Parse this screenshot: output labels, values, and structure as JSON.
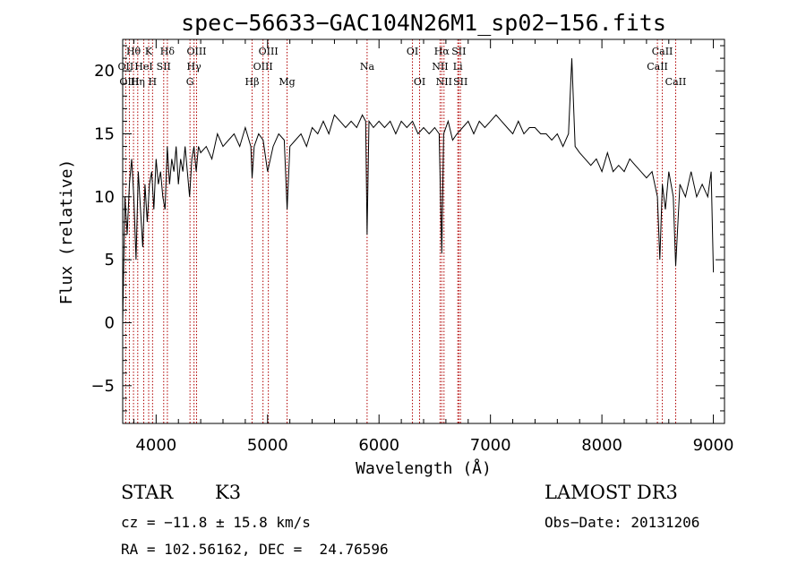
{
  "chart_data": {
    "type": "line",
    "title": "spec−56633−GAC104N26M1_sp02−156.fits",
    "xlabel": "Wavelength (Å)",
    "ylabel": "Flux (relative)",
    "xlim": [
      3700,
      9100
    ],
    "ylim": [
      -8,
      22.5
    ],
    "x_ticks": [
      4000,
      5000,
      6000,
      7000,
      8000,
      9000
    ],
    "y_ticks": [
      -5,
      0,
      5,
      10,
      15,
      20
    ],
    "y_tick_labels": [
      "−5",
      "0",
      "5",
      "10",
      "15",
      "20"
    ],
    "series": [
      {
        "name": "spectrum",
        "x": [
          3700,
          3720,
          3740,
          3760,
          3780,
          3800,
          3820,
          3840,
          3860,
          3880,
          3900,
          3920,
          3940,
          3960,
          3980,
          4000,
          4020,
          4040,
          4060,
          4080,
          4100,
          4120,
          4140,
          4160,
          4180,
          4200,
          4220,
          4240,
          4260,
          4280,
          4300,
          4320,
          4340,
          4360,
          4380,
          4400,
          4450,
          4500,
          4550,
          4600,
          4650,
          4700,
          4750,
          4800,
          4850,
          4861,
          4880,
          4920,
          4960,
          5000,
          5050,
          5100,
          5150,
          5175,
          5200,
          5250,
          5300,
          5350,
          5400,
          5450,
          5500,
          5550,
          5600,
          5650,
          5700,
          5750,
          5800,
          5850,
          5880,
          5893,
          5910,
          5950,
          6000,
          6050,
          6100,
          6150,
          6200,
          6250,
          6300,
          6350,
          6400,
          6450,
          6500,
          6540,
          6563,
          6580,
          6620,
          6660,
          6700,
          6750,
          6800,
          6850,
          6900,
          6950,
          7000,
          7050,
          7100,
          7150,
          7200,
          7250,
          7300,
          7350,
          7400,
          7450,
          7500,
          7550,
          7600,
          7650,
          7700,
          7730,
          7760,
          7800,
          7850,
          7900,
          7950,
          8000,
          8050,
          8100,
          8150,
          8200,
          8250,
          8300,
          8350,
          8400,
          8450,
          8498,
          8520,
          8542,
          8570,
          8600,
          8640,
          8662,
          8700,
          8750,
          8800,
          8850,
          8900,
          8950,
          8980,
          9000
        ],
        "y": [
          0,
          10,
          7,
          11,
          13,
          10,
          5,
          12,
          9,
          6,
          11,
          8,
          11,
          12,
          9,
          13,
          11,
          12,
          10,
          9,
          14,
          11,
          13,
          12,
          14,
          11,
          13,
          12,
          14,
          12,
          10,
          13,
          14,
          12,
          14,
          13.5,
          14,
          13,
          15,
          14,
          14.5,
          15,
          14,
          15.5,
          14,
          11.5,
          14,
          15,
          14.5,
          12,
          14,
          15,
          14.5,
          9,
          14,
          14.5,
          15,
          14,
          15.5,
          15,
          16,
          15,
          16.5,
          16,
          15.5,
          16,
          15.5,
          16.5,
          16,
          7,
          16,
          15.5,
          16,
          15.5,
          16,
          15,
          16,
          15.5,
          16,
          15,
          15.5,
          15,
          15.5,
          15,
          5.5,
          15,
          16,
          14.5,
          15,
          15.5,
          16,
          15,
          16,
          15.5,
          16,
          16.5,
          16,
          15.5,
          15,
          16,
          15,
          15.5,
          15.5,
          15,
          15,
          14.5,
          15,
          14,
          15,
          21,
          14,
          13.5,
          13,
          12.5,
          13,
          12,
          13.5,
          12,
          12.5,
          12,
          13,
          12.5,
          12,
          11.5,
          12,
          10,
          5,
          11,
          9,
          12,
          10,
          4.5,
          11,
          10,
          12,
          10,
          11,
          10,
          12,
          4
        ]
      }
    ],
    "lines": [
      {
        "label": "Hθ",
        "x": 3797,
        "row": 1
      },
      {
        "label": "OII",
        "x": 3727,
        "row": 2
      },
      {
        "label": "OIII",
        "x": 3760,
        "row": 3
      },
      {
        "label": "Hη",
        "x": 3835,
        "row": 3
      },
      {
        "label": "K",
        "x": 3933,
        "row": 1
      },
      {
        "label": "HeI",
        "x": 3889,
        "row": 2
      },
      {
        "label": "SII",
        "x": 4068,
        "row": 2
      },
      {
        "label": "H",
        "x": 3968,
        "row": 3
      },
      {
        "label": "Hδ",
        "x": 4101,
        "row": 1
      },
      {
        "label": "OIII",
        "x": 4363,
        "row": 1
      },
      {
        "label": "Hγ",
        "x": 4340,
        "row": 2
      },
      {
        "label": "G",
        "x": 4304,
        "row": 3
      },
      {
        "label": "OIII",
        "x": 5007,
        "row": 1
      },
      {
        "label": "OIII",
        "x": 4959,
        "row": 2
      },
      {
        "label": "Hβ",
        "x": 4861,
        "row": 3
      },
      {
        "label": "Mg",
        "x": 5175,
        "row": 3
      },
      {
        "label": "Na",
        "x": 5893,
        "row": 2
      },
      {
        "label": "OI",
        "x": 6300,
        "row": 1
      },
      {
        "label": "OI",
        "x": 6364,
        "row": 3
      },
      {
        "label": "Hα",
        "x": 6563,
        "row": 1
      },
      {
        "label": "SII",
        "x": 6716,
        "row": 1
      },
      {
        "label": "NII",
        "x": 6548,
        "row": 2
      },
      {
        "label": "Li",
        "x": 6707,
        "row": 2
      },
      {
        "label": "NII",
        "x": 6583,
        "row": 3
      },
      {
        "label": "SII",
        "x": 6731,
        "row": 3
      },
      {
        "label": "CaII",
        "x": 8542,
        "row": 1
      },
      {
        "label": "CaII",
        "x": 8498,
        "row": 2
      },
      {
        "label": "CaII",
        "x": 8662,
        "row": 3
      }
    ]
  },
  "info": {
    "object_class": "STAR",
    "subclass": "K3",
    "survey": "LAMOST DR3",
    "redshift": "cz = −11.8 ± 15.8 km/s",
    "obs_date": "Obs−Date: 20131206",
    "coords": "RA = 102.56162, DEC =  24.76596"
  },
  "colors": {
    "line_marker": "#b00000",
    "spectrum": "#000000"
  }
}
